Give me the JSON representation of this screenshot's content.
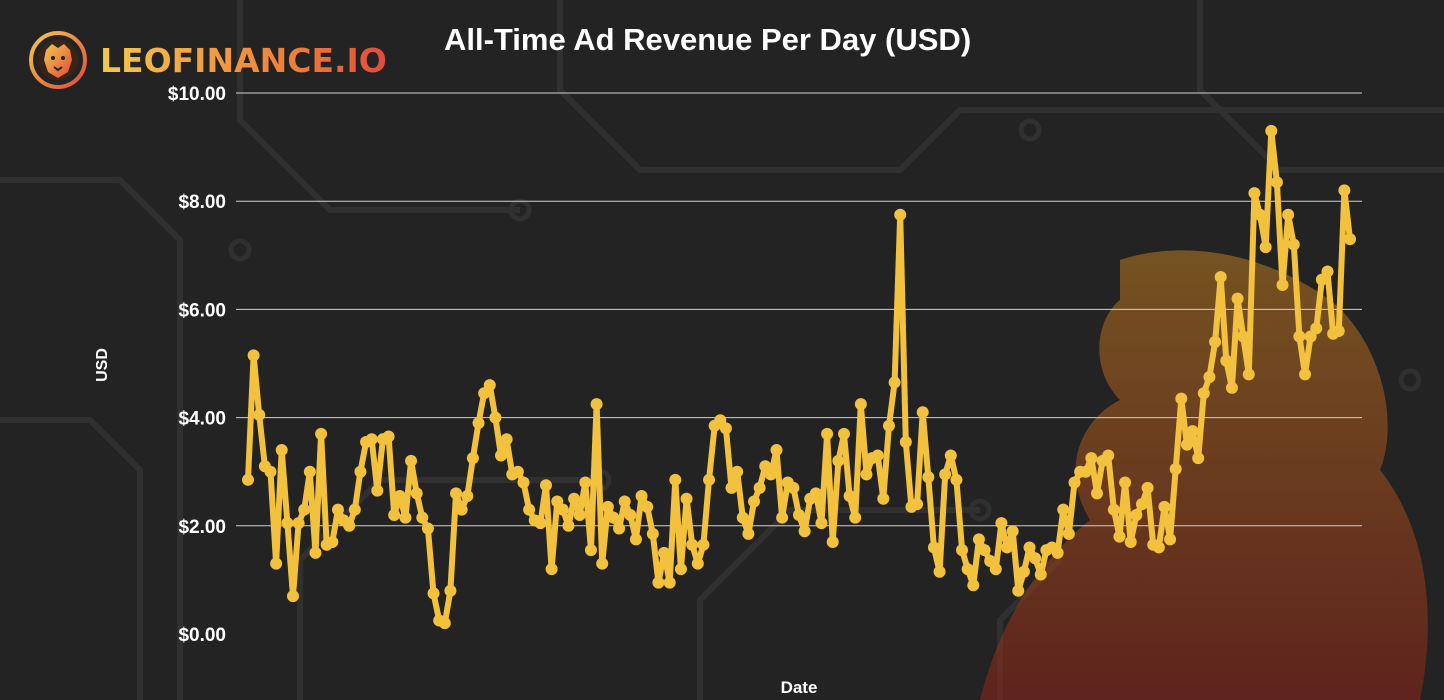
{
  "brand": {
    "name": "LEOFINANCE.IO",
    "icon": "lion-icon"
  },
  "colors": {
    "line": "#f2c23e",
    "frame_start": "#f2c94c",
    "frame_end": "#e24a3b",
    "background": "#232323",
    "grid": "#d0d0d0"
  },
  "chart_data": {
    "type": "line",
    "title": "All-Time Ad Revenue Per Day (USD)",
    "xlabel": "Date",
    "ylabel": "USD",
    "ylim": [
      0,
      10
    ],
    "yticks": [
      "$0.00",
      "$2.00",
      "$4.00",
      "$6.00",
      "$8.00",
      "$10.00"
    ],
    "grid": true,
    "legend": "none",
    "x": "daily points (date tick labels not shown)",
    "series": [
      {
        "values": [
          2.85,
          5.15,
          4.05,
          3.1,
          3.0,
          1.3,
          3.4,
          2.05,
          0.7,
          2.05,
          2.3,
          3.0,
          1.5,
          3.7,
          1.65,
          1.7,
          2.3,
          2.1,
          2.0,
          2.3,
          3.0,
          3.55,
          3.6,
          2.65,
          3.6,
          3.65,
          2.2,
          2.55,
          2.15,
          3.2,
          2.6,
          2.15,
          1.95,
          0.75,
          0.25,
          0.2,
          0.8,
          2.6,
          2.3,
          2.55,
          3.25,
          3.9,
          4.45,
          4.6,
          4.0,
          3.3,
          3.6,
          2.95,
          3.0,
          2.8,
          2.3,
          2.1,
          2.05,
          2.75,
          1.2,
          2.45,
          2.3,
          2.0,
          2.5,
          2.2,
          2.8,
          1.55,
          4.25,
          1.3,
          2.35,
          2.15,
          1.95,
          2.45,
          2.2,
          1.75,
          2.55,
          2.35,
          1.85,
          0.95,
          1.5,
          0.95,
          2.85,
          1.2,
          2.5,
          1.65,
          1.3,
          1.65,
          2.85,
          3.85,
          3.95,
          3.8,
          2.7,
          3.0,
          2.15,
          1.85,
          2.45,
          2.7,
          3.1,
          2.95,
          3.4,
          2.15,
          2.8,
          2.7,
          2.2,
          1.9,
          2.5,
          2.6,
          2.05,
          3.7,
          1.7,
          3.2,
          3.7,
          2.55,
          2.15,
          4.25,
          2.95,
          3.25,
          3.3,
          2.5,
          3.85,
          4.65,
          7.75,
          3.55,
          2.35,
          2.4,
          4.1,
          2.9,
          1.6,
          1.15,
          2.95,
          3.3,
          2.85,
          1.55,
          1.2,
          0.9,
          1.75,
          1.55,
          1.35,
          1.2,
          2.05,
          1.6,
          1.9,
          0.8,
          1.15,
          1.6,
          1.4,
          1.1,
          1.55,
          1.6,
          1.5,
          2.3,
          1.85,
          2.8,
          3.0,
          3.0,
          3.25,
          2.6,
          3.2,
          3.3,
          2.3,
          1.8,
          2.8,
          1.7,
          2.2,
          2.4,
          2.7,
          1.65,
          1.6,
          2.35,
          1.75,
          3.05,
          4.35,
          3.5,
          3.75,
          3.25,
          4.45,
          4.75,
          5.4,
          6.6,
          5.05,
          4.55,
          6.2,
          5.5,
          4.8,
          8.15,
          7.75,
          7.15,
          9.3,
          8.35,
          6.45,
          7.75,
          7.2,
          5.5,
          4.8,
          5.5,
          5.65,
          6.55,
          6.7,
          5.55,
          5.6,
          8.2,
          7.3
        ]
      }
    ]
  }
}
